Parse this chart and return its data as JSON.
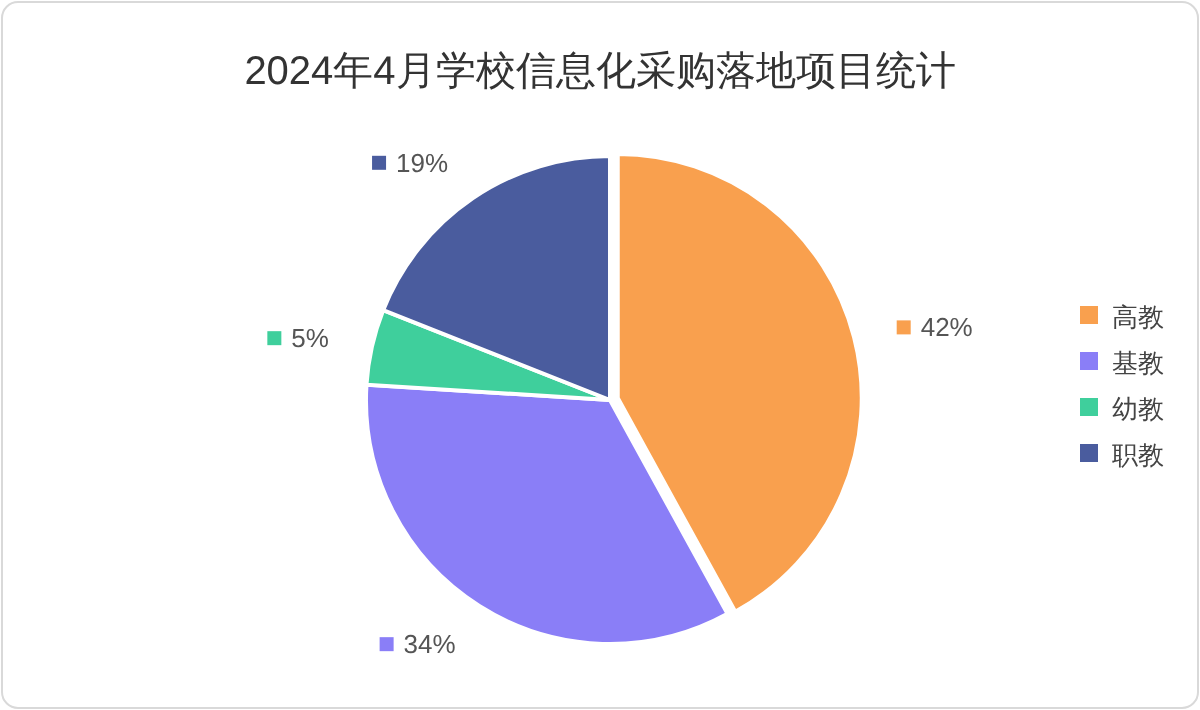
{
  "chart_data": {
    "type": "pie",
    "title": "2024年4月学校信息化采购落地项目统计",
    "categories": [
      "高教",
      "基教",
      "幼教",
      "职教"
    ],
    "values": [
      42,
      34,
      5,
      19
    ],
    "colors": [
      "#f9a04e",
      "#8a7ef7",
      "#3fcf9c",
      "#4a5c9e"
    ],
    "value_labels": [
      "42%",
      "34%",
      "5%",
      "19%"
    ],
    "legend": "right"
  }
}
